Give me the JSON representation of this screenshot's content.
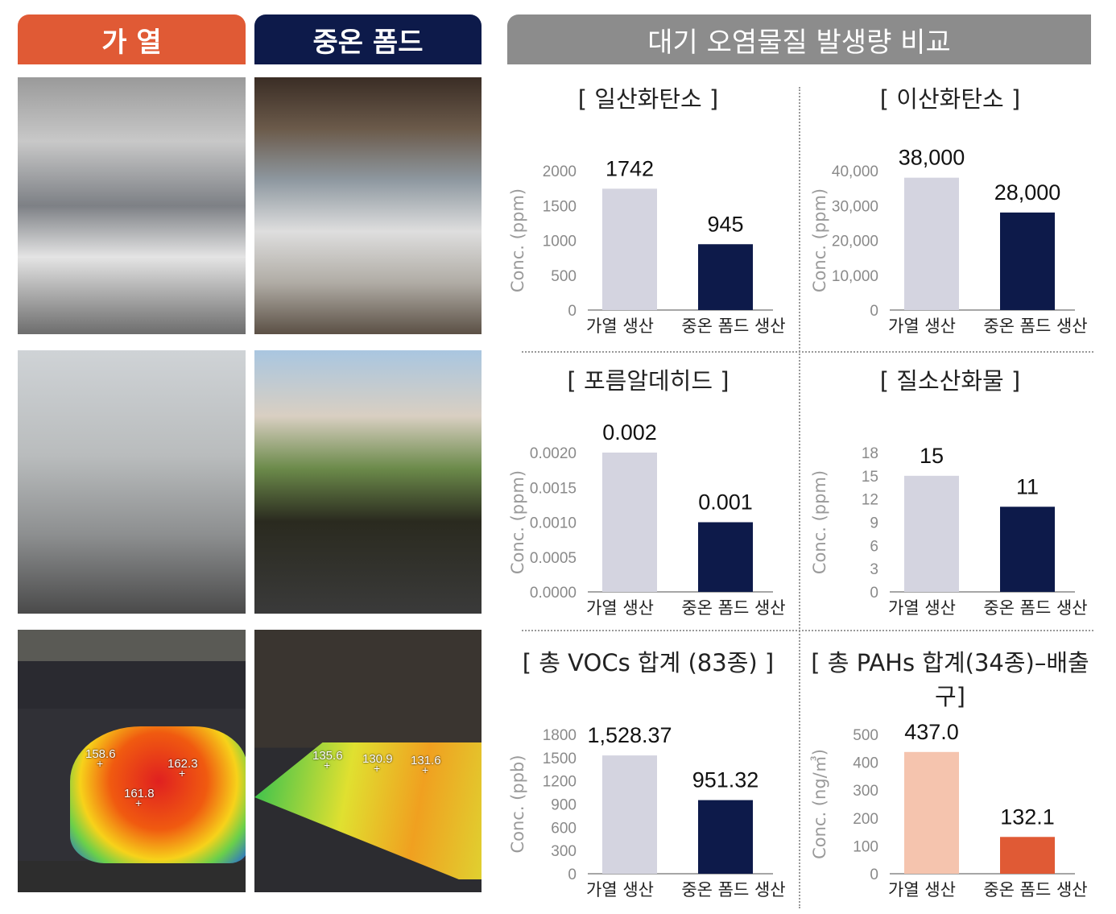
{
  "headers": {
    "heating": "가 열",
    "warm_foam": "중온 폼드",
    "comparison": "대기 오염물질 발생량 비교"
  },
  "colors": {
    "heating": "#e05a35",
    "warm_foam": "#0d1a4a",
    "header_gray": "#8c8c8c"
  },
  "photos": {
    "thermal_heating": [
      "158.6",
      "162.3",
      "161.8"
    ],
    "thermal_warm_foam": [
      "135.6",
      "130.9",
      "131.6"
    ]
  },
  "chart_data": [
    {
      "type": "bar",
      "title": "[ 일산화탄소 ]",
      "ylabel": "Conc. (ppm)",
      "categories": [
        "가열 생산",
        "중온 폼드 생산"
      ],
      "values": [
        1742,
        945
      ],
      "value_labels": [
        "1742",
        "945"
      ],
      "ylim": [
        0,
        2000
      ],
      "ticks": [
        0,
        500,
        1000,
        1500,
        2000
      ],
      "tick_labels": [
        "0",
        "500",
        "1000",
        "1500",
        "2000"
      ],
      "colors": [
        "#d4d4e0",
        "#0d1a4a"
      ]
    },
    {
      "type": "bar",
      "title": "[ 이산화탄소 ]",
      "ylabel": "Conc. (ppm)",
      "categories": [
        "가열 생산",
        "중온 폼드 생산"
      ],
      "values": [
        38000,
        28000
      ],
      "value_labels": [
        "38,000",
        "28,000"
      ],
      "ylim": [
        0,
        40000
      ],
      "ticks": [
        0,
        10000,
        20000,
        30000,
        40000
      ],
      "tick_labels": [
        "0",
        "10,000",
        "20,000",
        "30,000",
        "40,000"
      ],
      "colors": [
        "#d4d4e0",
        "#0d1a4a"
      ]
    },
    {
      "type": "bar",
      "title": "[ 포름알데히드 ]",
      "ylabel": "Conc. (ppm)",
      "categories": [
        "가열 생산",
        "중온 폼드 생산"
      ],
      "values": [
        0.002,
        0.001
      ],
      "value_labels": [
        "0.002",
        "0.001"
      ],
      "ylim": [
        0,
        0.002
      ],
      "ticks": [
        0,
        0.0005,
        0.001,
        0.0015,
        0.002
      ],
      "tick_labels": [
        "0.0000",
        "0.0005",
        "0.0010",
        "0.0015",
        "0.0020"
      ],
      "colors": [
        "#d4d4e0",
        "#0d1a4a"
      ]
    },
    {
      "type": "bar",
      "title": "[ 질소산화물 ]",
      "ylabel": "Conc. (ppm)",
      "categories": [
        "가열 생산",
        "중온 폼드 생산"
      ],
      "values": [
        15,
        11
      ],
      "value_labels": [
        "15",
        "11"
      ],
      "ylim": [
        0,
        18
      ],
      "ticks": [
        0,
        3,
        6,
        9,
        12,
        15,
        18
      ],
      "tick_labels": [
        "0",
        "3",
        "6",
        "9",
        "12",
        "15",
        "18"
      ],
      "colors": [
        "#d4d4e0",
        "#0d1a4a"
      ]
    },
    {
      "type": "bar",
      "title": "[ 총 VOCs 합계 (83종) ]",
      "ylabel": "Conc. (ppb)",
      "categories": [
        "가열 생산",
        "중온 폼드 생산"
      ],
      "values": [
        1528.37,
        951.32
      ],
      "value_labels": [
        "1,528.37",
        "951.32"
      ],
      "ylim": [
        0,
        1800
      ],
      "ticks": [
        0,
        300,
        600,
        900,
        1200,
        1500,
        1800
      ],
      "tick_labels": [
        "0",
        "300",
        "600",
        "900",
        "1200",
        "1500",
        "1800"
      ],
      "colors": [
        "#d4d4e0",
        "#0d1a4a"
      ]
    },
    {
      "type": "bar",
      "title": "[ 총 PAHs 합계(34종)–배출구]",
      "ylabel": "Conc. (ng/㎥)",
      "categories": [
        "가열 생산",
        "중온 폼드 생산"
      ],
      "values": [
        437.0,
        132.1
      ],
      "value_labels": [
        "437.0",
        "132.1"
      ],
      "ylim": [
        0,
        500
      ],
      "ticks": [
        0,
        100,
        200,
        300,
        400,
        500
      ],
      "tick_labels": [
        "0",
        "100",
        "200",
        "300",
        "400",
        "500"
      ],
      "colors": [
        "#f5c4ae",
        "#e05a35"
      ]
    }
  ]
}
